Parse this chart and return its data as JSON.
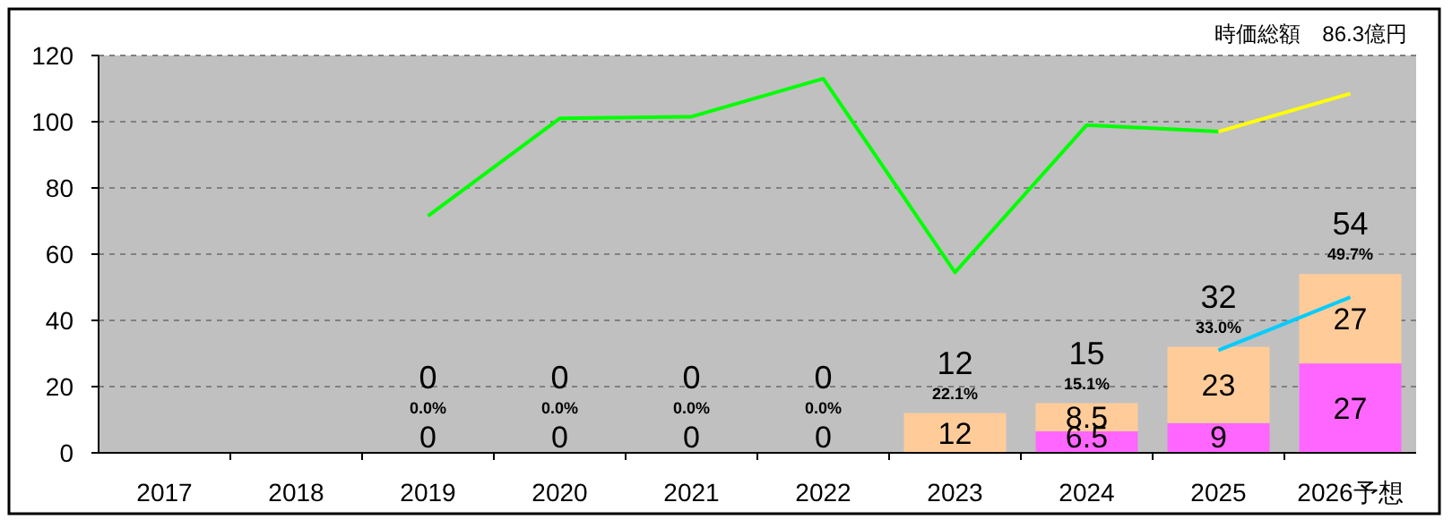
{
  "chart_data": {
    "type": "bar",
    "stacked": true,
    "title": "時価総額　86.3億円",
    "categories": [
      "2017",
      "2018",
      "2019",
      "2020",
      "2021",
      "2022",
      "2023",
      "2024",
      "2025",
      "2026予想"
    ],
    "ylim": [
      0,
      120
    ],
    "yticks": [
      0,
      20,
      40,
      60,
      80,
      100,
      120
    ],
    "grid": "y",
    "series": [
      {
        "color": "#ff66ff",
        "values": [
          null,
          null,
          null,
          null,
          null,
          null,
          null,
          6.5,
          9,
          27
        ],
        "value_labels": [
          null,
          null,
          null,
          null,
          null,
          null,
          null,
          "6.5",
          "9",
          "27"
        ]
      },
      {
        "color": "#ffcc99",
        "values": [
          null,
          null,
          0,
          0,
          0,
          0,
          12,
          8.5,
          23,
          27
        ],
        "value_labels": [
          null,
          null,
          "0",
          "0",
          "0",
          "0",
          "12",
          "8.5",
          "23",
          "27"
        ]
      },
      {
        "type": "line",
        "color": "#00ff00",
        "values": [
          null,
          null,
          71.5,
          101,
          101.5,
          113,
          54.5,
          99,
          97,
          null
        ]
      },
      {
        "type": "line",
        "color": "#ffff00",
        "values": [
          null,
          null,
          null,
          null,
          null,
          null,
          null,
          null,
          97,
          108.5
        ]
      },
      {
        "type": "line",
        "color": "#00ccff",
        "values": [
          null,
          null,
          null,
          null,
          null,
          null,
          null,
          null,
          31,
          47
        ]
      }
    ],
    "totals": [
      null,
      null,
      "0",
      "0",
      "0",
      "0",
      "12",
      "15",
      "32",
      "54"
    ],
    "annotations": [
      {
        "text": "0.0%",
        "x": "2019",
        "y": 0
      },
      {
        "text": "0.0%",
        "x": "2020",
        "y": 0
      },
      {
        "text": "0.0%",
        "x": "2021",
        "y": 0
      },
      {
        "text": "0.0%",
        "x": "2022",
        "y": 0
      },
      {
        "text": "22.1%",
        "x": "2023",
        "y": 12
      },
      {
        "text": "15.1%",
        "x": "2024",
        "y": 15
      },
      {
        "text": "33.0%",
        "x": "2025",
        "y": 32
      },
      {
        "text": "49.7%",
        "x": "2026予想",
        "y": 54
      }
    ]
  }
}
